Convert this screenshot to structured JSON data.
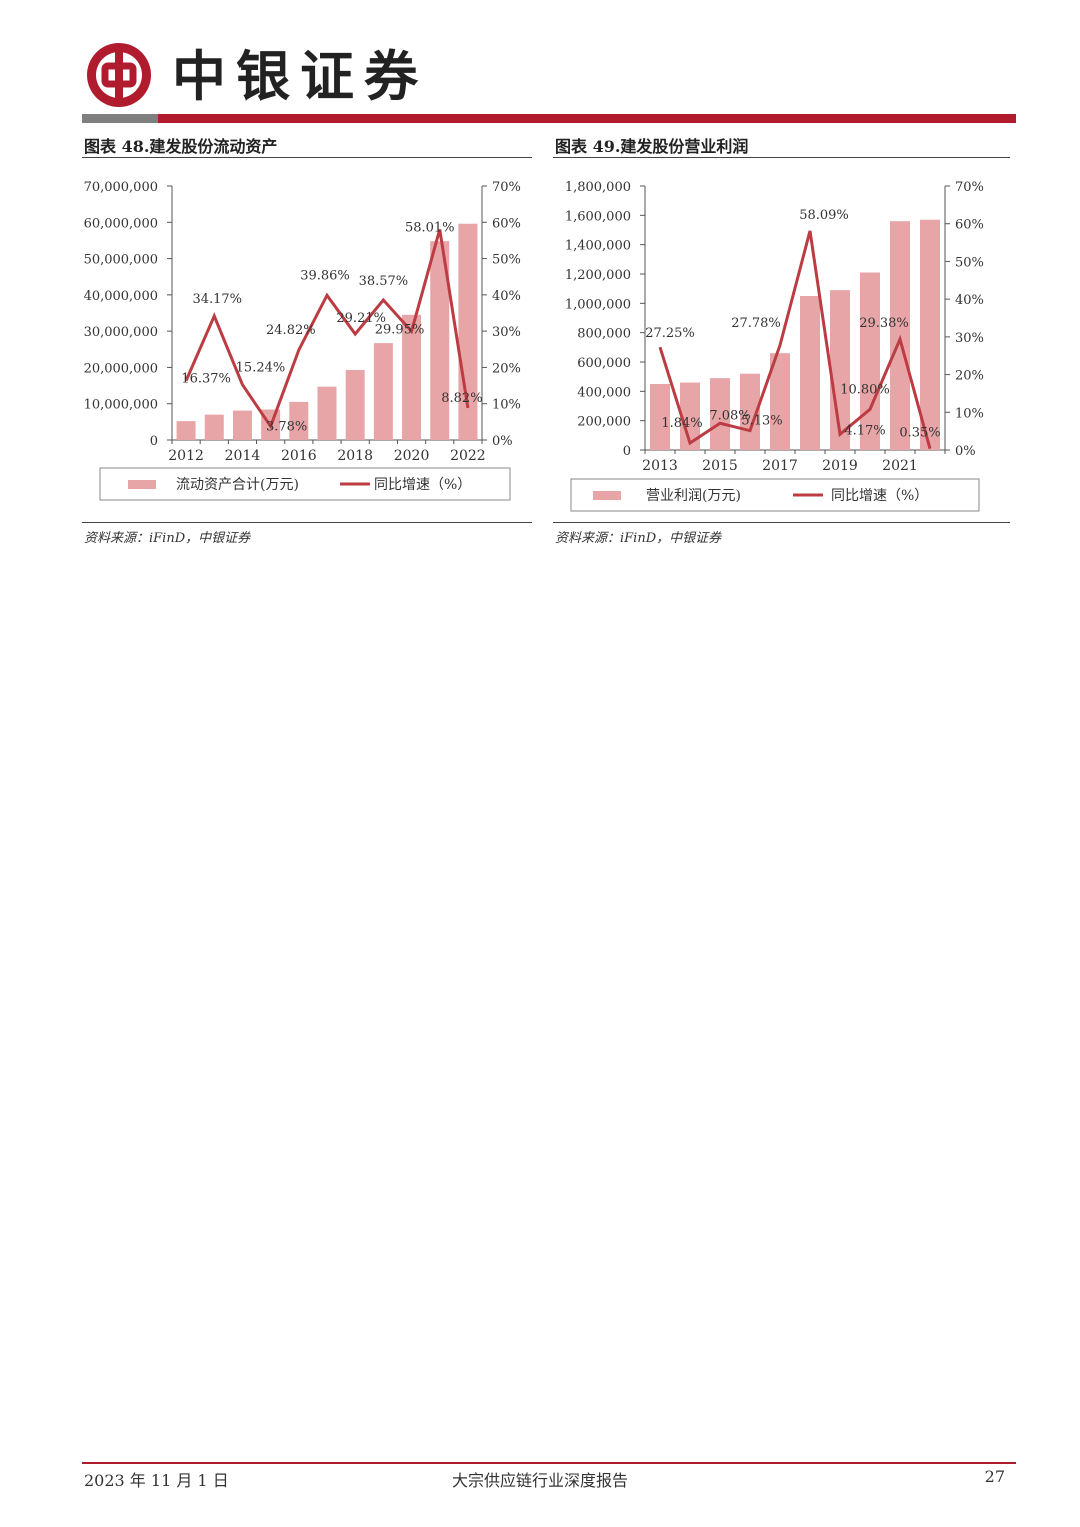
{
  "header": {
    "brand": "中银证券"
  },
  "figures": [
    {
      "title": "图表 48.建发股份流动资产",
      "source": "资料来源：iFinD，中银证券"
    },
    {
      "title": "图表 49.建发股份营业利润",
      "source": "资料来源：iFinD，中银证券"
    }
  ],
  "chart_data": [
    {
      "type": "bar",
      "categories": [
        "2012",
        "2013",
        "2014",
        "2015",
        "2016",
        "2017",
        "2018",
        "2019",
        "2020",
        "2021",
        "2022"
      ],
      "x_tick_labels": [
        "2012",
        "2014",
        "2016",
        "2018",
        "2020",
        "2022"
      ],
      "series": [
        {
          "name": "流动资产合计(万元)",
          "type": "bar",
          "axis": "left",
          "color": "#e8a5a7",
          "values": [
            5200000,
            7000000,
            8100000,
            8400000,
            10500000,
            14700000,
            19300000,
            26700000,
            34500000,
            54800000,
            59600000
          ]
        },
        {
          "name": "同比增速（%）",
          "type": "line",
          "axis": "right",
          "color": "#bb3c42",
          "values": [
            16.37,
            34.17,
            15.24,
            3.78,
            24.82,
            39.86,
            29.21,
            38.57,
            29.95,
            58.01,
            8.82
          ]
        }
      ],
      "point_labels": [
        "16.37%",
        "34.17%",
        "15.24%",
        "3.78%",
        "24.82%",
        "39.86%",
        "29.21%",
        "38.57%",
        "29.95%",
        "58.01%",
        "8.82%"
      ],
      "y_left": {
        "ticks": [
          "0",
          "10,000,000",
          "20,000,000",
          "30,000,000",
          "40,000,000",
          "50,000,000",
          "60,000,000",
          "70,000,000"
        ],
        "min": 0,
        "max": 70000000
      },
      "y_right": {
        "ticks": [
          "0%",
          "10%",
          "20%",
          "30%",
          "40%",
          "50%",
          "60%",
          "70%"
        ],
        "min": 0,
        "max": 70
      },
      "legend": [
        "流动资产合计(万元)",
        "同比增速（%）"
      ],
      "legend_position": "bottom",
      "grid": false
    },
    {
      "type": "bar",
      "categories": [
        "2013",
        "2014",
        "2015",
        "2016",
        "2017",
        "2018",
        "2019",
        "2020",
        "2021",
        "2022"
      ],
      "x_tick_labels": [
        "2013",
        "2015",
        "2017",
        "2019",
        "2021"
      ],
      "series": [
        {
          "name": "营业利润(万元)",
          "type": "bar",
          "axis": "left",
          "color": "#e8a5a7",
          "values": [
            450000,
            460000,
            490000,
            520000,
            660000,
            1050000,
            1090000,
            1210000,
            1560000,
            1570000
          ]
        },
        {
          "name": "同比增速（%）",
          "type": "line",
          "axis": "right",
          "color": "#bb3c42",
          "values": [
            27.25,
            1.84,
            7.08,
            5.13,
            27.78,
            58.09,
            4.17,
            10.8,
            29.38,
            0.35
          ]
        }
      ],
      "point_labels": [
        "27.25%",
        "1.84%",
        "7.08%",
        "5.13%",
        "27.78%",
        "58.09%",
        "4.17%",
        "10.80%",
        "29.38%",
        "0.35%"
      ],
      "y_left": {
        "ticks": [
          "0",
          "200,000",
          "400,000",
          "600,000",
          "800,000",
          "1,000,000",
          "1,200,000",
          "1,400,000",
          "1,600,000",
          "1,800,000"
        ],
        "min": 0,
        "max": 1800000
      },
      "y_right": {
        "ticks": [
          "0%",
          "10%",
          "20%",
          "30%",
          "40%",
          "50%",
          "60%",
          "70%"
        ],
        "min": 0,
        "max": 70
      },
      "legend": [
        "营业利润(万元)",
        "同比增速（%）"
      ],
      "legend_position": "bottom",
      "grid": false
    }
  ],
  "footer": {
    "date": "2023 年 11 月 1 日",
    "title": "大宗供应链行业深度报告",
    "page": "27"
  }
}
